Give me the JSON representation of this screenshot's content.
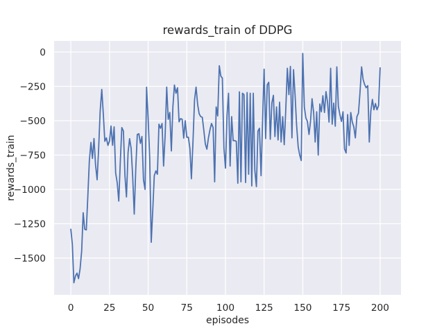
{
  "chart_data": {
    "type": "line",
    "title": "rewards_train of DDPG",
    "xlabel": "episodes",
    "ylabel": "rewards_train",
    "legend": null,
    "grid": true,
    "plot_bg": "#eaeaf2",
    "grid_color": "#ffffff",
    "line_color": "#4c72b0",
    "text_color": "#262626",
    "xlim": [
      -10.8,
      213.5
    ],
    "ylim": [
      -1768,
      81
    ],
    "x_ticks": [
      0,
      25,
      50,
      75,
      100,
      125,
      150,
      175,
      200
    ],
    "x_tick_labels": [
      "0",
      "25",
      "50",
      "75",
      "100",
      "125",
      "150",
      "175",
      "200"
    ],
    "y_ticks": [
      0,
      -250,
      -500,
      -750,
      -1000,
      -1250,
      -1500
    ],
    "y_tick_labels": [
      "0",
      "−250",
      "−500",
      "−750",
      "−1000",
      "−1250",
      "−1500"
    ],
    "series": [
      {
        "name": "rewards_train",
        "x_start": 0,
        "x_step": 1,
        "values": [
          -1290,
          -1400,
          -1680,
          -1630,
          -1610,
          -1650,
          -1580,
          -1450,
          -1170,
          -1290,
          -1295,
          -1050,
          -790,
          -658,
          -775,
          -630,
          -820,
          -930,
          -700,
          -430,
          -272,
          -450,
          -650,
          -625,
          -680,
          -648,
          -539,
          -679,
          -545,
          -880,
          -950,
          -1085,
          -800,
          -550,
          -575,
          -900,
          -1055,
          -732,
          -631,
          -700,
          -900,
          -1180,
          -850,
          -600,
          -595,
          -665,
          -615,
          -930,
          -1000,
          -256,
          -480,
          -770,
          -1385,
          -1150,
          -900,
          -865,
          -890,
          -525,
          -555,
          -520,
          -830,
          -600,
          -255,
          -490,
          -440,
          -720,
          -400,
          -240,
          -300,
          -260,
          -508,
          -485,
          -490,
          -627,
          -500,
          -620,
          -620,
          -700,
          -923,
          -650,
          -350,
          -255,
          -382,
          -450,
          -470,
          -475,
          -570,
          -670,
          -707,
          -623,
          -565,
          -520,
          -550,
          -945,
          -400,
          -465,
          -100,
          -175,
          -190,
          -700,
          -845,
          -465,
          -300,
          -830,
          -470,
          -645,
          -645,
          -650,
          -955,
          -290,
          -945,
          -300,
          -310,
          -950,
          -295,
          -890,
          -300,
          -975,
          -300,
          -860,
          -980,
          -575,
          -555,
          -900,
          -500,
          -125,
          -630,
          -240,
          -220,
          -635,
          -370,
          -315,
          -615,
          -400,
          -640,
          -365,
          -655,
          -470,
          -675,
          -420,
          -118,
          -310,
          -105,
          -625,
          -128,
          -310,
          -530,
          -690,
          -750,
          -790,
          -10,
          -400,
          -480,
          -505,
          -600,
          -505,
          -340,
          -440,
          -655,
          -435,
          -750,
          -378,
          -435,
          -318,
          -440,
          -288,
          -365,
          -510,
          -118,
          -525,
          -372,
          -540,
          -108,
          -395,
          -455,
          -505,
          -435,
          -705,
          -735,
          -455,
          -680,
          -440,
          -510,
          -545,
          -625,
          -470,
          -445,
          -295,
          -108,
          -200,
          -237,
          -260,
          -245,
          -655,
          -430,
          -345,
          -420,
          -375,
          -420,
          -390,
          -115
        ]
      }
    ]
  }
}
